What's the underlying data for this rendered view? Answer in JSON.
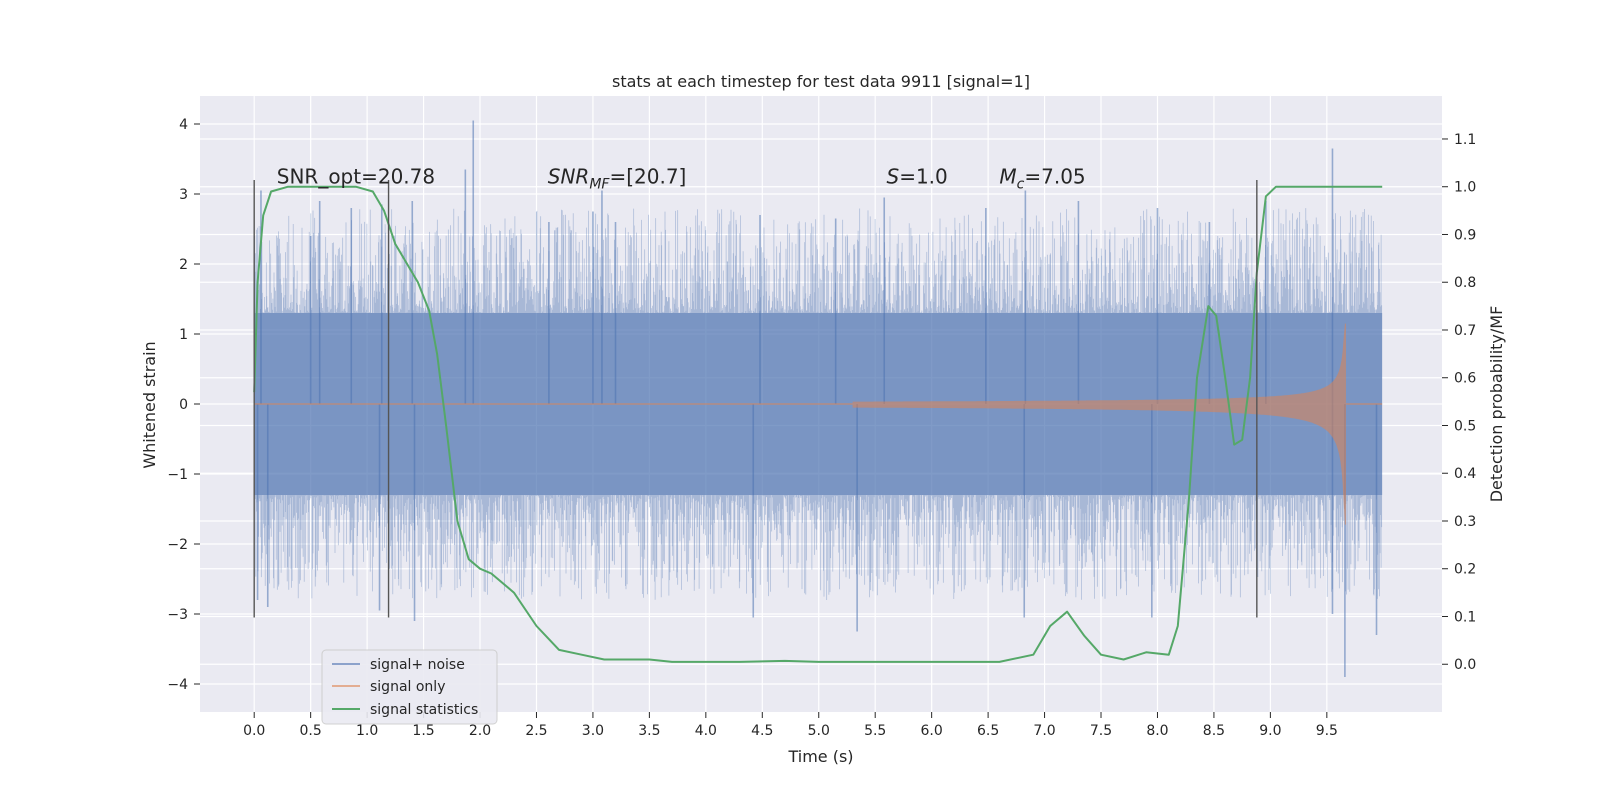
{
  "chart_data": {
    "type": "line",
    "title": "stats at each timestep for test data 9911 [signal=1]",
    "xlabel": "Time (s)",
    "ylabel": "Whitened strain",
    "y2label": "Detection probability/MF",
    "xlim": [
      -0.48,
      10.52
    ],
    "ylim": [
      -4.4,
      4.4
    ],
    "y2lim": [
      -0.1,
      1.19
    ],
    "x_ticks": [
      "0.0",
      "0.5",
      "1.0",
      "1.5",
      "2.0",
      "2.5",
      "3.0",
      "3.5",
      "4.0",
      "4.5",
      "5.0",
      "5.5",
      "6.0",
      "6.5",
      "7.0",
      "7.5",
      "8.0",
      "8.5",
      "9.0",
      "9.5"
    ],
    "y_ticks": [
      "−4",
      "−3",
      "−2",
      "−1",
      "0",
      "1",
      "2",
      "3",
      "4"
    ],
    "y2_ticks": [
      "0.0",
      "0.1",
      "0.2",
      "0.3",
      "0.4",
      "0.5",
      "0.6",
      "0.7",
      "0.8",
      "0.9",
      "1.0",
      "1.1"
    ],
    "grid": true,
    "legend_position": "lower-left",
    "annotations": [
      {
        "pre": "SNR_opt=20.78",
        "it": "",
        "sub": "",
        "post": "",
        "x": 0.2,
        "y": 3.15
      },
      {
        "pre": "",
        "it": "SNR",
        "sub": "MF",
        "post": "=[20.7]",
        "x": 2.6,
        "y": 3.15
      },
      {
        "pre": "",
        "it": "S",
        "sub": "",
        "post": "=1.0",
        "x": 5.6,
        "y": 3.15
      },
      {
        "pre": "",
        "it": "M",
        "sub": "c",
        "post": "=7.05",
        "x": 6.6,
        "y": 3.15
      }
    ],
    "vlines": [
      {
        "x": 0.0,
        "y": [
          -3.05,
          3.2
        ]
      },
      {
        "x": 1.19,
        "y": [
          -3.05,
          3.2
        ]
      },
      {
        "x": 8.88,
        "y": [
          -3.05,
          3.2
        ]
      }
    ],
    "series": [
      {
        "name": "signal+ noise",
        "color": "#4c72b0",
        "opacity": 0.5,
        "x_range": [
          0.0,
          9.99
        ],
        "band": [
          -1.3,
          1.3
        ],
        "peaks": [
          {
            "x": 0.06,
            "y": 3.05
          },
          {
            "x": 0.5,
            "y": 2.4
          },
          {
            "x": 0.58,
            "y": 2.9
          },
          {
            "x": 0.86,
            "y": 2.8
          },
          {
            "x": 1.13,
            "y": 2.85
          },
          {
            "x": 1.4,
            "y": 2.9
          },
          {
            "x": 1.87,
            "y": 3.35
          },
          {
            "x": 1.94,
            "y": 4.05
          },
          {
            "x": 2.61,
            "y": 2.6
          },
          {
            "x": 3.0,
            "y": 2.75
          },
          {
            "x": 3.08,
            "y": 3.05
          },
          {
            "x": 3.2,
            "y": 2.6
          },
          {
            "x": 4.48,
            "y": 2.7
          },
          {
            "x": 5.15,
            "y": 2.65
          },
          {
            "x": 5.58,
            "y": 2.95
          },
          {
            "x": 6.48,
            "y": 2.8
          },
          {
            "x": 6.83,
            "y": 3.05
          },
          {
            "x": 7.3,
            "y": 2.9
          },
          {
            "x": 8.0,
            "y": 2.8
          },
          {
            "x": 8.46,
            "y": 2.6
          },
          {
            "x": 8.96,
            "y": 2.9
          },
          {
            "x": 9.55,
            "y": 3.65
          },
          {
            "x": 0.03,
            "y": -2.8
          },
          {
            "x": 0.12,
            "y": -2.9
          },
          {
            "x": 1.11,
            "y": -2.95
          },
          {
            "x": 1.42,
            "y": -3.1
          },
          {
            "x": 5.34,
            "y": -3.25
          },
          {
            "x": 4.42,
            "y": -3.05
          },
          {
            "x": 6.82,
            "y": -3.05
          },
          {
            "x": 7.95,
            "y": -3.05
          },
          {
            "x": 9.55,
            "y": -3.0
          },
          {
            "x": 9.66,
            "y": -3.9
          },
          {
            "x": 9.94,
            "y": -3.3
          }
        ]
      },
      {
        "name": "signal only",
        "color": "#dd8452",
        "opacity": 0.55,
        "chirp_start": 5.3,
        "merger_x": 9.67,
        "peak_amplitude": 1.85
      },
      {
        "name": "signal statistics",
        "color": "#55a868",
        "axis": "right",
        "x": [
          0.0,
          0.03,
          0.08,
          0.15,
          0.3,
          0.6,
          0.9,
          1.05,
          1.15,
          1.25,
          1.35,
          1.45,
          1.55,
          1.62,
          1.7,
          1.8,
          1.9,
          2.0,
          2.1,
          2.3,
          2.5,
          2.7,
          2.9,
          3.1,
          3.3,
          3.5,
          3.7,
          3.9,
          4.3,
          4.7,
          5.0,
          5.4,
          5.8,
          6.2,
          6.6,
          6.9,
          7.05,
          7.2,
          7.35,
          7.5,
          7.7,
          7.9,
          8.1,
          8.18,
          8.28,
          8.35,
          8.45,
          8.52,
          8.6,
          8.68,
          8.75,
          8.82,
          8.88,
          8.96,
          9.05,
          9.2,
          9.5,
          9.99
        ],
        "values": [
          0.57,
          0.8,
          0.94,
          0.99,
          1.0,
          1.0,
          1.0,
          0.99,
          0.95,
          0.88,
          0.84,
          0.8,
          0.74,
          0.65,
          0.5,
          0.3,
          0.22,
          0.2,
          0.19,
          0.15,
          0.08,
          0.03,
          0.02,
          0.01,
          0.01,
          0.01,
          0.005,
          0.005,
          0.005,
          0.007,
          0.005,
          0.005,
          0.005,
          0.005,
          0.005,
          0.02,
          0.08,
          0.11,
          0.06,
          0.02,
          0.01,
          0.025,
          0.02,
          0.08,
          0.35,
          0.6,
          0.75,
          0.73,
          0.6,
          0.46,
          0.47,
          0.6,
          0.82,
          0.98,
          1.0,
          1.0,
          1.0,
          1.0
        ]
      }
    ]
  }
}
